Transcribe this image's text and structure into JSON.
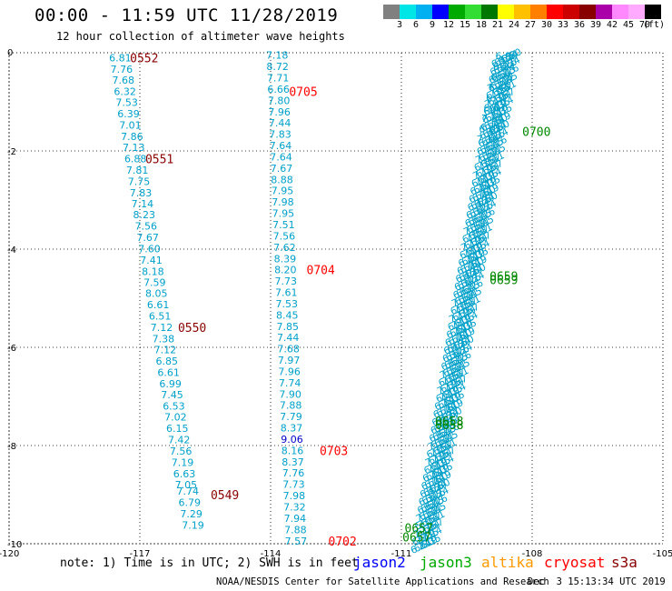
{
  "header": {
    "title": "00:00 - 11:59 UTC 11/28/2019",
    "subtitle": "12 hour collection of altimeter wave heights"
  },
  "scale": {
    "colors": [
      "#808080",
      "#00e5e5",
      "#00b0f0",
      "#0000ff",
      "#00aa00",
      "#33dd33",
      "#007700",
      "#ffff00",
      "#ffc000",
      "#ff8000",
      "#ff0000",
      "#cc0000",
      "#880000",
      "#aa00aa",
      "#ff88ff",
      "#ffaaff",
      "#000000"
    ],
    "labels": [
      "3",
      "6",
      "9",
      "12",
      "15",
      "18",
      "21",
      "24",
      "27",
      "30",
      "33",
      "36",
      "39",
      "42",
      "45",
      "70",
      "(ft)"
    ]
  },
  "chart_data": {
    "type": "scatter",
    "xlim": [
      -120,
      -105
    ],
    "ylim": [
      -10,
      0
    ],
    "x_ticks": [
      "-120",
      "-117",
      "-114",
      "-111",
      "-108",
      "-105"
    ],
    "y_ticks": [
      "0",
      "-2",
      "-4",
      "-6",
      "-8",
      "-10"
    ],
    "grid": true,
    "tracks": [
      {
        "name": "track-a",
        "color": "#00a0c8",
        "points": [
          {
            "x": -117.45,
            "y": -0.1,
            "v": "6.81"
          },
          {
            "x": -117.42,
            "y": -0.33,
            "v": "7.76"
          },
          {
            "x": -117.38,
            "y": -0.56,
            "v": "7.68"
          },
          {
            "x": -117.34,
            "y": -0.79,
            "v": "6.32"
          },
          {
            "x": -117.3,
            "y": -1.01,
            "v": "7.53"
          },
          {
            "x": -117.26,
            "y": -1.24,
            "v": "6.39"
          },
          {
            "x": -117.22,
            "y": -1.47,
            "v": "7.01"
          },
          {
            "x": -117.18,
            "y": -1.7,
            "v": "7.86"
          },
          {
            "x": -117.14,
            "y": -1.93,
            "v": "7.13"
          },
          {
            "x": -117.1,
            "y": -2.16,
            "v": "6.88"
          },
          {
            "x": -117.06,
            "y": -2.39,
            "v": "7.81"
          },
          {
            "x": -117.02,
            "y": -2.62,
            "v": "7.75"
          },
          {
            "x": -116.98,
            "y": -2.85,
            "v": "7.83"
          },
          {
            "x": -116.94,
            "y": -3.07,
            "v": "7.14"
          },
          {
            "x": -116.9,
            "y": -3.3,
            "v": "8.23"
          },
          {
            "x": -116.86,
            "y": -3.53,
            "v": "7.56"
          },
          {
            "x": -116.82,
            "y": -3.76,
            "v": "7.67"
          },
          {
            "x": -116.78,
            "y": -3.99,
            "v": "7.60"
          },
          {
            "x": -116.74,
            "y": -4.22,
            "v": "7.41"
          },
          {
            "x": -116.7,
            "y": -4.45,
            "v": "8.18"
          },
          {
            "x": -116.66,
            "y": -4.68,
            "v": "7.59"
          },
          {
            "x": -116.62,
            "y": -4.9,
            "v": "8.05"
          },
          {
            "x": -116.58,
            "y": -5.13,
            "v": "6.61"
          },
          {
            "x": -116.54,
            "y": -5.36,
            "v": "6.51"
          },
          {
            "x": -116.5,
            "y": -5.59,
            "v": "7.12"
          },
          {
            "x": -116.46,
            "y": -5.82,
            "v": "7.38"
          },
          {
            "x": -116.42,
            "y": -6.05,
            "v": "7.12"
          },
          {
            "x": -116.38,
            "y": -6.28,
            "v": "6.85"
          },
          {
            "x": -116.34,
            "y": -6.51,
            "v": "6.61"
          },
          {
            "x": -116.3,
            "y": -6.74,
            "v": "6.99"
          },
          {
            "x": -116.26,
            "y": -6.96,
            "v": "7.45"
          },
          {
            "x": -116.22,
            "y": -7.19,
            "v": "6.53"
          },
          {
            "x": -116.18,
            "y": -7.42,
            "v": "7.02"
          },
          {
            "x": -116.14,
            "y": -7.65,
            "v": "6.15"
          },
          {
            "x": -116.1,
            "y": -7.88,
            "v": "7.42"
          },
          {
            "x": -116.06,
            "y": -8.11,
            "v": "7.56"
          },
          {
            "x": -116.02,
            "y": -8.34,
            "v": "7.19"
          },
          {
            "x": -115.98,
            "y": -8.57,
            "v": "6.63"
          },
          {
            "x": -115.94,
            "y": -8.8,
            "v": "7.05"
          },
          {
            "x": -115.9,
            "y": -8.93,
            "v": "7.74"
          },
          {
            "x": -115.86,
            "y": -9.16,
            "v": "6.79"
          },
          {
            "x": -115.82,
            "y": -9.39,
            "v": "7.29"
          },
          {
            "x": -115.78,
            "y": -9.62,
            "v": "7.19"
          }
        ],
        "time_labels": [
          {
            "x": -116.9,
            "y": -0.1,
            "t": "0552"
          },
          {
            "x": -116.55,
            "y": -2.16,
            "t": "0551"
          },
          {
            "x": -115.8,
            "y": -5.59,
            "t": "0550"
          },
          {
            "x": -115.05,
            "y": -9.0,
            "t": "0549"
          }
        ]
      },
      {
        "name": "track-b",
        "color": "#00a0c8",
        "points": [
          {
            "x": -113.85,
            "y": -0.05,
            "v": "7.18"
          },
          {
            "x": -113.84,
            "y": -0.28,
            "v": "8.72"
          },
          {
            "x": -113.83,
            "y": -0.51,
            "v": "7.71"
          },
          {
            "x": -113.82,
            "y": -0.74,
            "v": "6.66"
          },
          {
            "x": -113.81,
            "y": -0.97,
            "v": "7.80"
          },
          {
            "x": -113.8,
            "y": -1.2,
            "v": "7.96"
          },
          {
            "x": -113.79,
            "y": -1.43,
            "v": "7.44"
          },
          {
            "x": -113.78,
            "y": -1.66,
            "v": "7.83"
          },
          {
            "x": -113.77,
            "y": -1.89,
            "v": "7.64"
          },
          {
            "x": -113.76,
            "y": -2.12,
            "v": "7.64"
          },
          {
            "x": -113.75,
            "y": -2.35,
            "v": "7.67"
          },
          {
            "x": -113.74,
            "y": -2.58,
            "v": "8.88"
          },
          {
            "x": -113.73,
            "y": -2.81,
            "v": "7.95"
          },
          {
            "x": -113.72,
            "y": -3.04,
            "v": "7.98"
          },
          {
            "x": -113.71,
            "y": -3.27,
            "v": "7.95"
          },
          {
            "x": -113.7,
            "y": -3.5,
            "v": "7.51"
          },
          {
            "x": -113.69,
            "y": -3.73,
            "v": "7.56"
          },
          {
            "x": -113.68,
            "y": -3.96,
            "v": "7.62"
          },
          {
            "x": -113.67,
            "y": -4.19,
            "v": "8.39"
          },
          {
            "x": -113.66,
            "y": -4.42,
            "v": "8.20"
          },
          {
            "x": -113.65,
            "y": -4.65,
            "v": "7.73"
          },
          {
            "x": -113.64,
            "y": -4.88,
            "v": "7.61"
          },
          {
            "x": -113.63,
            "y": -5.11,
            "v": "7.53"
          },
          {
            "x": -113.62,
            "y": -5.34,
            "v": "8.45"
          },
          {
            "x": -113.61,
            "y": -5.57,
            "v": "7.85"
          },
          {
            "x": -113.6,
            "y": -5.8,
            "v": "7.44"
          },
          {
            "x": -113.59,
            "y": -6.03,
            "v": "7.68"
          },
          {
            "x": -113.58,
            "y": -6.26,
            "v": "7.97"
          },
          {
            "x": -113.57,
            "y": -6.49,
            "v": "7.96"
          },
          {
            "x": -113.56,
            "y": -6.72,
            "v": "7.74"
          },
          {
            "x": -113.55,
            "y": -6.95,
            "v": "7.90"
          },
          {
            "x": -113.54,
            "y": -7.18,
            "v": "7.88"
          },
          {
            "x": -113.53,
            "y": -7.41,
            "v": "7.79"
          },
          {
            "x": -113.52,
            "y": -7.64,
            "v": "8.37"
          },
          {
            "x": -113.51,
            "y": -7.87,
            "v": "9.06"
          },
          {
            "x": -113.5,
            "y": -8.1,
            "v": "8.16"
          },
          {
            "x": -113.49,
            "y": -8.33,
            "v": "8.37"
          },
          {
            "x": -113.48,
            "y": -8.56,
            "v": "7.76"
          },
          {
            "x": -113.47,
            "y": -8.79,
            "v": "7.73"
          },
          {
            "x": -113.46,
            "y": -9.02,
            "v": "7.98"
          },
          {
            "x": -113.45,
            "y": -9.25,
            "v": "7.32"
          },
          {
            "x": -113.44,
            "y": -9.48,
            "v": "7.94"
          },
          {
            "x": -113.43,
            "y": -9.71,
            "v": "7.88"
          },
          {
            "x": -113.42,
            "y": -9.94,
            "v": "7.57"
          }
        ],
        "time_labels": [
          {
            "x": -113.25,
            "y": -0.79,
            "t": "0705",
            "color": "#ff0000"
          },
          {
            "x": -112.85,
            "y": -4.42,
            "t": "0704",
            "color": "#ff0000"
          },
          {
            "x": -112.55,
            "y": -8.1,
            "t": "0703",
            "color": "#ff0000"
          },
          {
            "x": -112.35,
            "y": -9.94,
            "t": "0702",
            "color": "#ff0000"
          }
        ]
      }
    ],
    "diagonal_track": {
      "start": {
        "x": -108.65,
        "y": -0.05
      },
      "end": {
        "x": -110.5,
        "y": -9.95
      },
      "color": "#00a0c8",
      "strands": 4,
      "values": [
        "6.80",
        "6.24",
        "6.76",
        "6.45",
        "6.31",
        "6.67",
        "7.14",
        "6.35",
        "7.19"
      ]
    },
    "green_labels": [
      {
        "x": -107.9,
        "y": -1.6,
        "t": "0700"
      },
      {
        "x": -108.65,
        "y": -4.55,
        "t": "0659"
      },
      {
        "x": -108.65,
        "y": -4.62,
        "t": "0659"
      },
      {
        "x": -109.9,
        "y": -7.5,
        "t": "0658"
      },
      {
        "x": -109.9,
        "y": -7.57,
        "t": "0658"
      },
      {
        "x": -110.6,
        "y": -9.68,
        "t": "0657"
      },
      {
        "x": -110.65,
        "y": -9.86,
        "t": "0657"
      }
    ]
  },
  "footer": {
    "note": "note: 1) Time is in UTC; 2) SWH is in feet",
    "legend": [
      {
        "label": "jason2",
        "color": "#0000ff"
      },
      {
        "label": "jason3",
        "color": "#00aa00"
      },
      {
        "label": "altika",
        "color": "#ff9900"
      },
      {
        "label": "cryosat",
        "color": "#ff0000"
      },
      {
        "label": "s3a",
        "color": "#880000"
      }
    ],
    "credit": "NOAA/NESDIS Center for Satellite Applications and Research",
    "timestamp": "Dec  3 15:13:34 UTC 2019"
  }
}
